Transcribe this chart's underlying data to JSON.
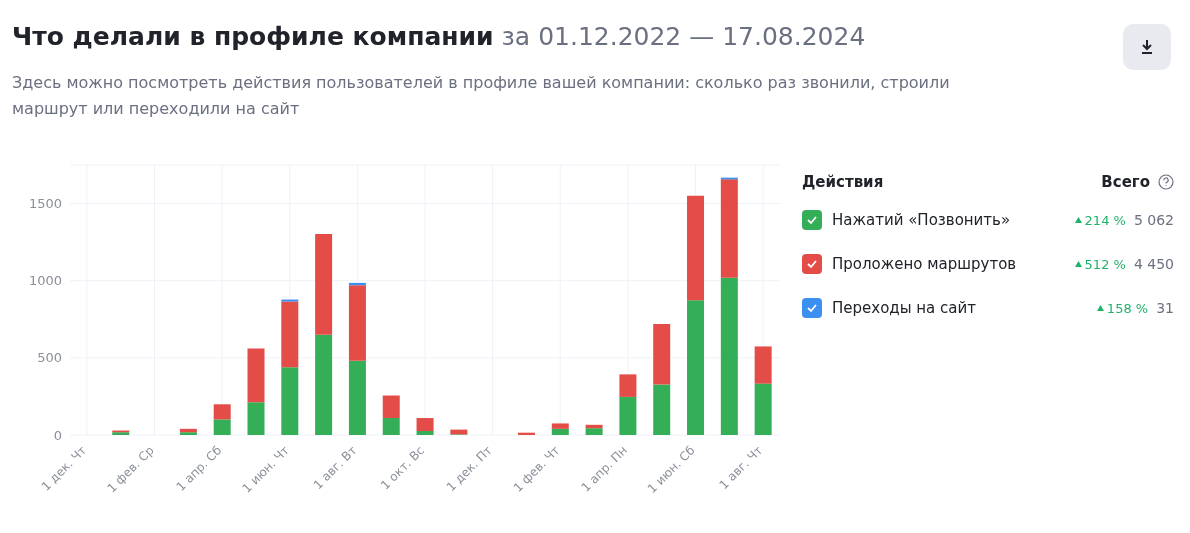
{
  "chart_data": {
    "type": "bar",
    "stacked": true,
    "title": "Что делали в профиле компании",
    "subtitle": "Здесь можно посмотреть действия пользователей в профиле вашей компании: сколько раз звонили, строили маршрут или переходили на сайт",
    "legend_title": "Действия",
    "annotations": [
      "за 01.12.2022 — 17.08.2024",
      "Всего",
      "214 %",
      "5 062",
      "512 %",
      "4 450",
      "158 %",
      "31"
    ],
    "categories": [
      "1 дек. Чт",
      null,
      "1 фев. Ср",
      null,
      "1 апр. Сб",
      null,
      "1 июн. Чт",
      null,
      "1 авг. Вт",
      null,
      "1 окт. Вс",
      null,
      "1 дек. Пт",
      null,
      "1 фев. Чт",
      null,
      "1 апр. Пн",
      null,
      "1 июн. Сб",
      null,
      "1 авг. Чт"
    ],
    "series": [
      {
        "name": "Нажатий «Позвонить»",
        "color": "#34ae57",
        "values": [
          0,
          18,
          0,
          18,
          101,
          212,
          439,
          649,
          481,
          110,
          26,
          4,
          0,
          0,
          40,
          44,
          247,
          327,
          874,
          1019,
          333
        ]
      },
      {
        "name": "Проложено маршрутов",
        "color": "#e34c47",
        "values": [
          0,
          11,
          0,
          22,
          98,
          348,
          426,
          653,
          490,
          146,
          84,
          31,
          0,
          15,
          35,
          22,
          146,
          392,
          677,
          638,
          241
        ]
      },
      {
        "name": "Переходы на сайт",
        "color": "#3b8ff0",
        "values": [
          0,
          0,
          0,
          0,
          0,
          0,
          13,
          0,
          15,
          0,
          0,
          0,
          0,
          0,
          0,
          0,
          0,
          0,
          0,
          11,
          0
        ]
      }
    ],
    "ylim": [
      0,
      1750
    ],
    "yticks": [
      0,
      500,
      1000,
      1500
    ],
    "grid": true,
    "legend": "right"
  }
}
